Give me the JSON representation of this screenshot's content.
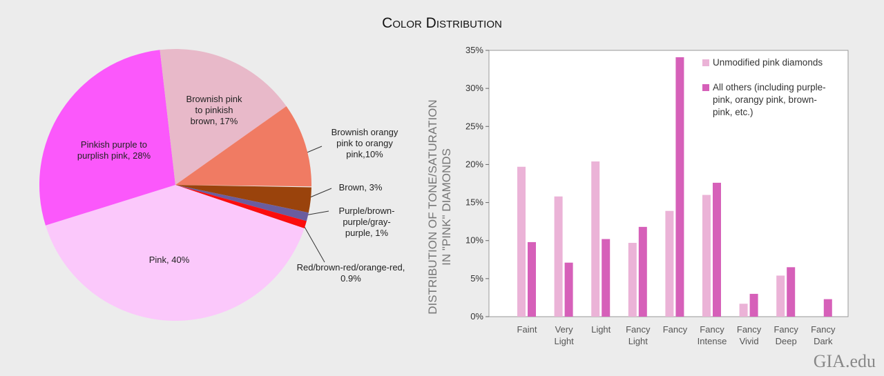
{
  "title": "Color Distribution",
  "watermark": "GIA.edu",
  "chart_data": [
    {
      "type": "pie",
      "values": [
        3,
        1,
        0.9,
        40,
        28,
        17,
        10
      ],
      "value_labels": [
        "Brown, 3%",
        "Purple/brown-\npurple/gray-\npurple, 1%",
        "Red/brown-red/orange-red,\n0.9%",
        "Pink, 40%",
        "Pinkish purple to\npurplish pink, 28%",
        "Brownish pink\nto pinkish\nbrown, 17%",
        "Brownish orangy\npink to orangy\npink,10%"
      ],
      "colors": [
        "#9a430c",
        "#6a5d9e",
        "#fb0d0d",
        "#fbc8fb",
        "#fb58fb",
        "#e8b9c9",
        "#f07b63"
      ]
    },
    {
      "type": "bar",
      "y_label": "DISTRIBUTION OF TONE/SATURATION\nIN \"PINK\" DIAMONDS",
      "categories": [
        "Faint",
        "Very\nLight",
        "Light",
        "Fancy\nLight",
        "Fancy",
        "Fancy\nIntense",
        "Fancy\nVivid",
        "Fancy\nDeep",
        "Fancy\nDark"
      ],
      "series": [
        {
          "name": "Unmodified pink diamonds",
          "color": "#ebb3d7",
          "values": [
            19.7,
            15.8,
            20.4,
            9.7,
            13.9,
            16.0,
            1.7,
            5.4,
            null
          ]
        },
        {
          "name": "All others (including purple-\npink, orangy pink, brown-\npink, etc.)",
          "color": "#d660b9",
          "values": [
            9.8,
            7.1,
            10.2,
            11.8,
            34.1,
            17.6,
            3.0,
            6.5,
            2.3
          ]
        }
      ],
      "ylim": [
        0,
        35
      ],
      "yticks": [
        {
          "value": 0,
          "label": "0%"
        },
        {
          "value": 5,
          "label": "5%"
        },
        {
          "value": 10,
          "label": "10%"
        },
        {
          "value": 15,
          "label": "15%"
        },
        {
          "value": 20,
          "label": "20%"
        },
        {
          "value": 25,
          "label": "25%"
        },
        {
          "value": 30,
          "label": "30%"
        },
        {
          "value": 35,
          "label": "35%"
        }
      ]
    }
  ]
}
